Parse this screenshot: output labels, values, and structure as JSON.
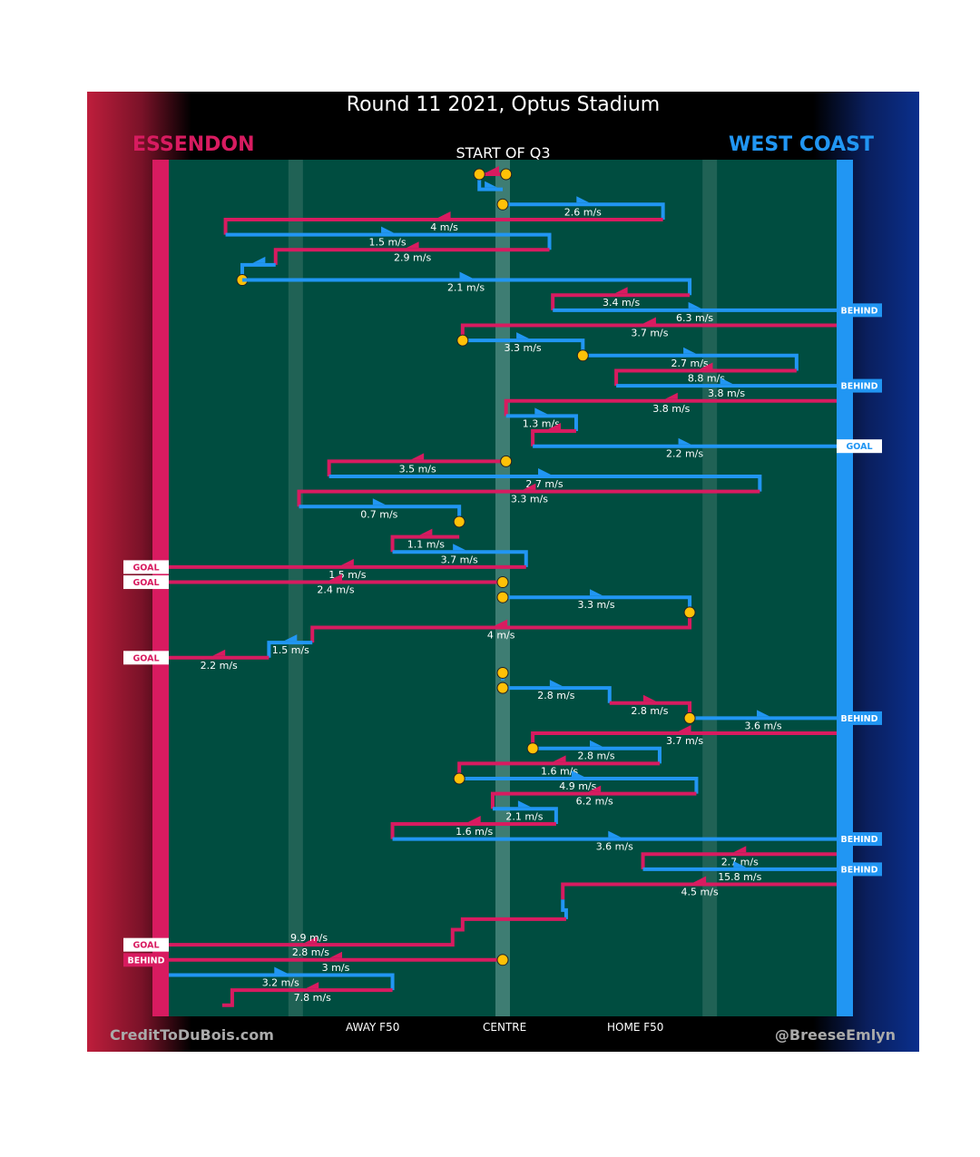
{
  "chart_data": {
    "type": "line",
    "title": "Round 11 2021, Optus Stadium",
    "subtitle": "START OF Q3",
    "teams": {
      "left": {
        "name": "ESSENDON",
        "color": "#d81b60"
      },
      "right": {
        "name": "WEST COAST",
        "color": "#2196f3"
      }
    },
    "field_labels": [
      "AWAY F50",
      "CENTRE",
      "HOME F50"
    ],
    "x_scale": {
      "min": -1,
      "max": 1,
      "away_f50": -0.62,
      "centre": 0,
      "home_f50": 0.62
    },
    "credits": {
      "left": "CreditToDuBois.com",
      "right": "@BreeseEmlyn"
    },
    "colors": {
      "field": "#004d40",
      "centre_band": "#4e8a80",
      "f50_band": "#2e6b5e",
      "essendon": "#d81b60",
      "west_coast": "#2196f3",
      "stoppage": "#ffc107"
    },
    "chains": [
      {
        "team": "E",
        "x": [
          0.01,
          -0.07
        ],
        "y": [
          1,
          1
        ],
        "stop": "start"
      },
      {
        "team": "W",
        "x": [
          -0.07,
          -0.07,
          0.0
        ],
        "y": [
          1,
          2,
          2
        ],
        "stop": "start"
      },
      {
        "team": "W",
        "x": [
          0.0,
          0.48,
          0.48
        ],
        "y": [
          3,
          3,
          4
        ],
        "stop": "start",
        "label": "2.6 m/s"
      },
      {
        "team": "E",
        "x": [
          0.48,
          -0.83,
          -0.83
        ],
        "y": [
          4,
          4,
          5
        ],
        "label": "4 m/s"
      },
      {
        "team": "W",
        "x": [
          -0.83,
          0.14,
          0.14
        ],
        "y": [
          5,
          5,
          6
        ],
        "label": "1.5 m/s"
      },
      {
        "team": "E",
        "x": [
          0.14,
          -0.68,
          -0.68
        ],
        "y": [
          6,
          6,
          7
        ],
        "label": "2.9 m/s"
      },
      {
        "team": "W",
        "x": [
          -0.68,
          -0.78,
          -0.78
        ],
        "y": [
          7,
          7,
          8
        ],
        "stop": "end"
      },
      {
        "team": "W",
        "x": [
          -0.78,
          0.56,
          0.56
        ],
        "y": [
          8,
          8,
          9
        ],
        "label": "2.1 m/s"
      },
      {
        "team": "E",
        "x": [
          0.56,
          0.15,
          0.15
        ],
        "y": [
          9,
          9,
          10
        ],
        "label": "3.4 m/s"
      },
      {
        "team": "W",
        "x": [
          0.15,
          1.0
        ],
        "y": [
          10,
          10
        ],
        "label": "6.3 m/s",
        "outcome": "BEHIND"
      },
      {
        "team": "E",
        "x": [
          1.0,
          -0.12,
          -0.12
        ],
        "y": [
          11,
          11,
          12
        ],
        "label": "3.7 m/s"
      },
      {
        "team": "W",
        "x": [
          -0.12,
          0.24,
          0.24
        ],
        "y": [
          12,
          12,
          13
        ],
        "stop": "start",
        "label": "3.3 m/s"
      },
      {
        "team": "W",
        "x": [
          0.24,
          0.88,
          0.88
        ],
        "y": [
          13,
          13,
          14
        ],
        "stop": "start",
        "label": "2.7 m/s"
      },
      {
        "team": "E",
        "x": [
          0.88,
          0.34,
          0.34
        ],
        "y": [
          14,
          14,
          15
        ],
        "label": "8.8 m/s"
      },
      {
        "team": "W",
        "x": [
          0.34,
          1.0
        ],
        "y": [
          15,
          15
        ],
        "label": "3.8 m/s",
        "outcome": "BEHIND"
      },
      {
        "team": "E",
        "x": [
          1.0,
          0.01,
          0.01
        ],
        "y": [
          16,
          16,
          17
        ],
        "label": "3.8 m/s"
      },
      {
        "team": "W",
        "x": [
          0.01,
          0.22,
          0.22
        ],
        "y": [
          17,
          17,
          18
        ],
        "label": "1.3 m/s"
      },
      {
        "team": "E",
        "x": [
          0.22,
          0.09,
          0.09
        ],
        "y": [
          18,
          18,
          19
        ]
      },
      {
        "team": "W",
        "x": [
          0.09,
          1.0
        ],
        "y": [
          19,
          19
        ],
        "label": "2.2 m/s",
        "outcome": "GOAL"
      },
      {
        "team": "E",
        "x": [
          0.01,
          -0.52,
          -0.52
        ],
        "y": [
          20,
          20,
          21
        ],
        "stop": "start",
        "label": "3.5 m/s"
      },
      {
        "team": "W",
        "x": [
          -0.52,
          0.77,
          0.77
        ],
        "y": [
          21,
          21,
          22
        ],
        "label": "2.7 m/s"
      },
      {
        "team": "E",
        "x": [
          0.77,
          -0.61,
          -0.61
        ],
        "y": [
          22,
          22,
          23
        ],
        "label": "3.3 m/s"
      },
      {
        "team": "W",
        "x": [
          -0.61,
          -0.13,
          -0.13
        ],
        "y": [
          23,
          23,
          24
        ],
        "stop": "end",
        "label": "0.7 m/s"
      },
      {
        "team": "E",
        "x": [
          -0.13,
          -0.33,
          -0.33
        ],
        "y": [
          25,
          25,
          26
        ],
        "label": "1.1 m/s"
      },
      {
        "team": "W",
        "x": [
          -0.33,
          0.07,
          0.07
        ],
        "y": [
          26,
          26,
          27
        ],
        "label": "3.7 m/s"
      },
      {
        "team": "E",
        "x": [
          0.07,
          -1.0
        ],
        "y": [
          27,
          27
        ],
        "label": "1.5 m/s",
        "outcome": "GOAL"
      },
      {
        "team": "E",
        "x": [
          0.0,
          -1.0
        ],
        "y": [
          28,
          28
        ],
        "stop": "start",
        "label": "2.4 m/s",
        "outcome": "GOAL"
      },
      {
        "team": "W",
        "x": [
          0.0,
          0.56,
          0.56
        ],
        "y": [
          29,
          29,
          30
        ],
        "stop": "start",
        "label": "3.3 m/s"
      },
      {
        "team": "E",
        "x": [
          0.56,
          0.56,
          -0.57,
          -0.57
        ],
        "y": [
          30,
          31,
          31,
          32
        ],
        "stop": "start",
        "label": "4 m/s"
      },
      {
        "team": "W",
        "x": [
          -0.57,
          -0.7,
          -0.7
        ],
        "y": [
          32,
          32,
          33
        ],
        "label": "1.5 m/s"
      },
      {
        "team": "E",
        "x": [
          -0.7,
          -1.0
        ],
        "y": [
          33,
          33
        ],
        "label": "2.2 m/s",
        "outcome": "GOAL"
      },
      {
        "team": "W",
        "x": [
          0.0,
          0.0
        ],
        "y": [
          34,
          34.5
        ],
        "stop": "start"
      },
      {
        "team": "W",
        "x": [
          0.0,
          0.32,
          0.32
        ],
        "y": [
          35,
          35,
          36
        ],
        "stop": "start",
        "label": "2.8 m/s"
      },
      {
        "team": "E",
        "x": [
          0.32,
          0.56,
          0.56
        ],
        "y": [
          36,
          36,
          37
        ],
        "label": "2.8 m/s"
      },
      {
        "team": "W",
        "x": [
          0.56,
          1.0
        ],
        "y": [
          37,
          37
        ],
        "stop": "start",
        "label": "3.6 m/s",
        "outcome": "BEHIND"
      },
      {
        "team": "E",
        "x": [
          1.0,
          0.09,
          0.09
        ],
        "y": [
          38,
          38,
          39
        ],
        "label": "3.7 m/s"
      },
      {
        "team": "W",
        "x": [
          0.09,
          0.47,
          0.47
        ],
        "y": [
          39,
          39,
          40
        ],
        "stop": "start",
        "label": "2.8 m/s"
      },
      {
        "team": "E",
        "x": [
          0.47,
          -0.13,
          -0.13
        ],
        "y": [
          40,
          40,
          41
        ],
        "label": "1.6 m/s"
      },
      {
        "team": "W",
        "x": [
          -0.13,
          0.58,
          0.58
        ],
        "y": [
          41,
          41,
          42
        ],
        "stop": "start",
        "label": "4.9 m/s"
      },
      {
        "team": "E",
        "x": [
          0.58,
          -0.03,
          -0.03
        ],
        "y": [
          42,
          42,
          43
        ],
        "label": "6.2 m/s"
      },
      {
        "team": "W",
        "x": [
          -0.03,
          0.16,
          0.16
        ],
        "y": [
          43,
          43,
          44
        ],
        "label": "2.1 m/s"
      },
      {
        "team": "E",
        "x": [
          0.16,
          -0.33,
          -0.33
        ],
        "y": [
          44,
          44,
          45
        ],
        "label": "1.6 m/s"
      },
      {
        "team": "W",
        "x": [
          -0.33,
          1.0
        ],
        "y": [
          45,
          45
        ],
        "label": "3.6 m/s",
        "outcome": "BEHIND"
      },
      {
        "team": "E",
        "x": [
          1.0,
          0.42,
          0.42
        ],
        "y": [
          46,
          46,
          47
        ],
        "label": "2.7 m/s"
      },
      {
        "team": "W",
        "x": [
          0.42,
          1.0
        ],
        "y": [
          47,
          47
        ],
        "label": "15.8 m/s",
        "outcome": "BEHIND"
      },
      {
        "team": "E",
        "x": [
          1.0,
          0.18,
          0.18
        ],
        "y": [
          48,
          48,
          49
        ],
        "label": "4.5 m/s"
      },
      {
        "team": "W",
        "x": [
          0.18,
          0.18,
          0.19,
          0.19
        ],
        "y": [
          49,
          49.7,
          49.7,
          50.3
        ]
      },
      {
        "team": "E",
        "x": [
          0.19,
          -0.12,
          -0.12,
          -0.15,
          -0.15,
          -1.0
        ],
        "y": [
          50.3,
          50.3,
          51,
          51,
          52,
          52
        ],
        "label": "2.8 m/s",
        "outcome": "GOAL"
      },
      {
        "team": "E",
        "x": [
          0.0,
          -1.0
        ],
        "y": [
          53,
          53
        ],
        "stop": "start",
        "label": "3 m/s",
        "outcome": "BEHIND"
      },
      {
        "team": "W",
        "x": [
          -1.0,
          -0.33,
          -0.33
        ],
        "y": [
          54,
          54,
          55
        ],
        "label": "3.2 m/s"
      },
      {
        "team": "E",
        "x": [
          -0.33,
          -0.81,
          -0.81,
          -0.84
        ],
        "y": [
          55,
          55,
          56,
          56
        ],
        "label": "7.8 m/s"
      }
    ],
    "speed_labels": [
      {
        "text": "9.9 m/s",
        "x": -0.58,
        "y": 52
      }
    ]
  }
}
